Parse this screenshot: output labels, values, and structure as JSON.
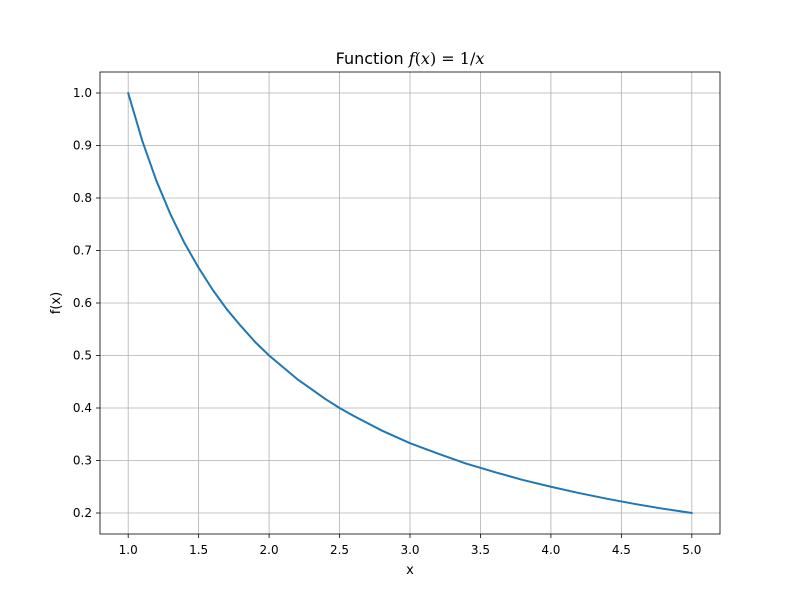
{
  "chart_data": {
    "type": "line",
    "title_parts": {
      "prefix": "Function ",
      "fn": "f",
      "open": "(",
      "var": "x",
      "close": ")",
      "eq": " = 1/",
      "var2": "x"
    },
    "xlabel": "x",
    "ylabel": "f(x)",
    "xlim": [
      0.8,
      5.2
    ],
    "ylim": [
      0.16,
      1.04
    ],
    "xticks": [
      1.0,
      1.5,
      2.0,
      2.5,
      3.0,
      3.5,
      4.0,
      4.5,
      5.0
    ],
    "xtick_labels": [
      "1.0",
      "1.5",
      "2.0",
      "2.5",
      "3.0",
      "3.5",
      "4.0",
      "4.5",
      "5.0"
    ],
    "yticks": [
      0.2,
      0.3,
      0.4,
      0.5,
      0.6,
      0.7,
      0.8,
      0.9,
      1.0
    ],
    "ytick_labels": [
      "0.2",
      "0.3",
      "0.4",
      "0.5",
      "0.6",
      "0.7",
      "0.8",
      "0.9",
      "1.0"
    ],
    "grid": true,
    "series": [
      {
        "color": "#1f77b4",
        "x": [
          1.0,
          1.1,
          1.2,
          1.3,
          1.4,
          1.5,
          1.6,
          1.7,
          1.8,
          1.9,
          2.0,
          2.2,
          2.4,
          2.5,
          2.6,
          2.8,
          3.0,
          3.2,
          3.4,
          3.5,
          3.6,
          3.8,
          4.0,
          4.2,
          4.4,
          4.5,
          4.6,
          4.8,
          5.0
        ],
        "y": [
          1.0,
          0.909,
          0.833,
          0.769,
          0.714,
          0.667,
          0.625,
          0.588,
          0.556,
          0.526,
          0.5,
          0.455,
          0.417,
          0.4,
          0.385,
          0.357,
          0.333,
          0.313,
          0.294,
          0.286,
          0.278,
          0.263,
          0.25,
          0.238,
          0.227,
          0.222,
          0.217,
          0.208,
          0.2
        ]
      }
    ]
  }
}
